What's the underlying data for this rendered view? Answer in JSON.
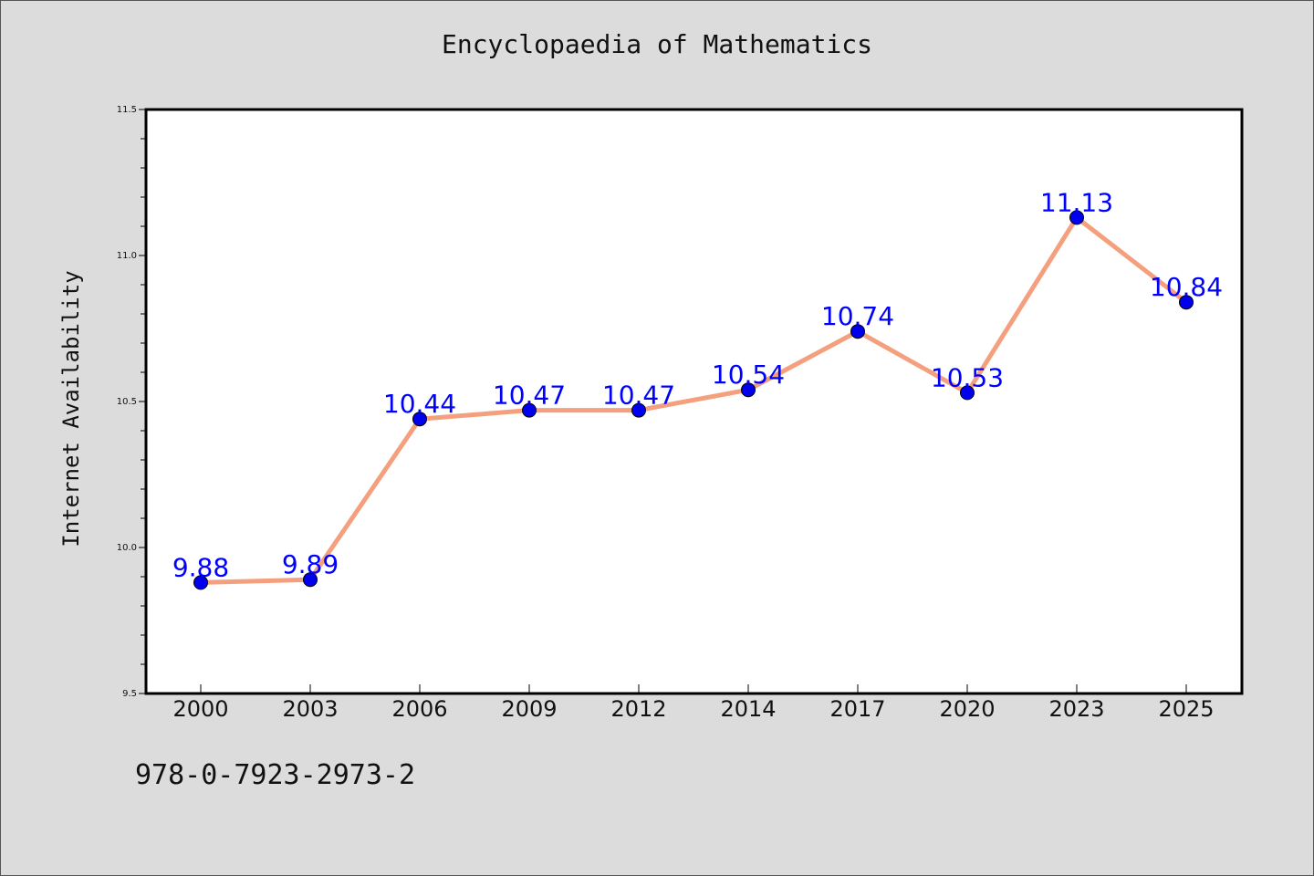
{
  "chart_data": {
    "type": "line",
    "title": "Encyclopaedia of Mathematics",
    "xlabel": "",
    "ylabel": "Internet Availability",
    "categories": [
      "2000",
      "2003",
      "2006",
      "2009",
      "2012",
      "2014",
      "2017",
      "2020",
      "2023",
      "2025"
    ],
    "series": [
      {
        "values": [
          9.88,
          9.89,
          10.44,
          10.47,
          10.47,
          10.54,
          10.74,
          10.53,
          11.13,
          10.84
        ],
        "labels": [
          "9.88",
          "9.89",
          "10.44",
          "10.47",
          "10.47",
          "10.54",
          "10.74",
          "10.53",
          "11.13",
          "10.84"
        ],
        "line_color": "#f4a07e",
        "marker_color": "#0000ee"
      }
    ],
    "ylim": [
      9.5,
      11.5
    ],
    "yticks": [
      "9.5",
      "10.0",
      "10.5",
      "11.0",
      "11.5"
    ],
    "grid": false,
    "label_color": "#0000ff"
  },
  "footer": {
    "code": "978-0-7923-2973-2"
  }
}
